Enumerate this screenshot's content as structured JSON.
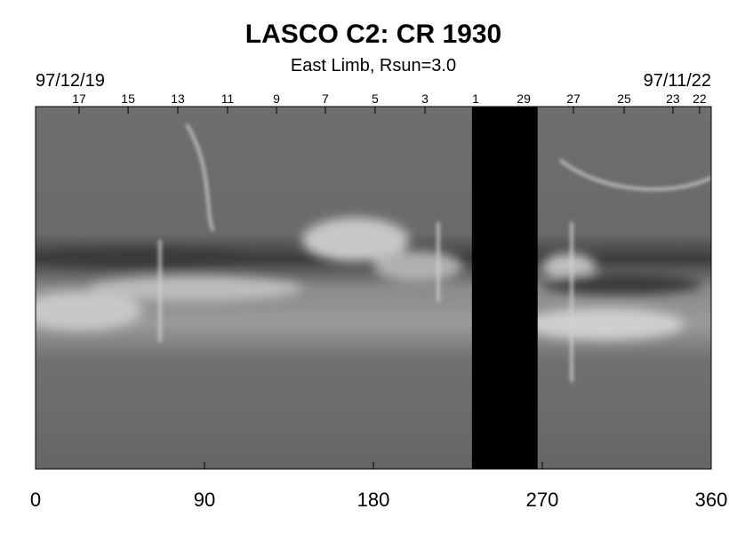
{
  "chart_data": {
    "type": "synoptic",
    "title": "LASCO C2: CR 1930",
    "subtitle": "East Limb, Rsun=3.0",
    "start_date": "97/12/19",
    "end_date": "97/11/22",
    "xlim": [
      0,
      360
    ],
    "xticks": [
      0,
      90,
      180,
      270,
      360
    ],
    "x2ticks": [
      {
        "value": 23.2,
        "label": "17"
      },
      {
        "value": 49.3,
        "label": "15"
      },
      {
        "value": 75.8,
        "label": "13"
      },
      {
        "value": 102.3,
        "label": "11"
      },
      {
        "value": 128.4,
        "label": "9"
      },
      {
        "value": 154.4,
        "label": "7"
      },
      {
        "value": 180.9,
        "label": "5"
      },
      {
        "value": 207.5,
        "label": "3"
      },
      {
        "value": 234.5,
        "label": "1"
      },
      {
        "value": 260.1,
        "label": "29"
      },
      {
        "value": 286.6,
        "label": "27"
      },
      {
        "value": 313.6,
        "label": "25"
      },
      {
        "value": 339.6,
        "label": "23"
      },
      {
        "value": 353.8,
        "label": "22"
      }
    ],
    "gap": [
      232.5,
      267.5
    ]
  }
}
